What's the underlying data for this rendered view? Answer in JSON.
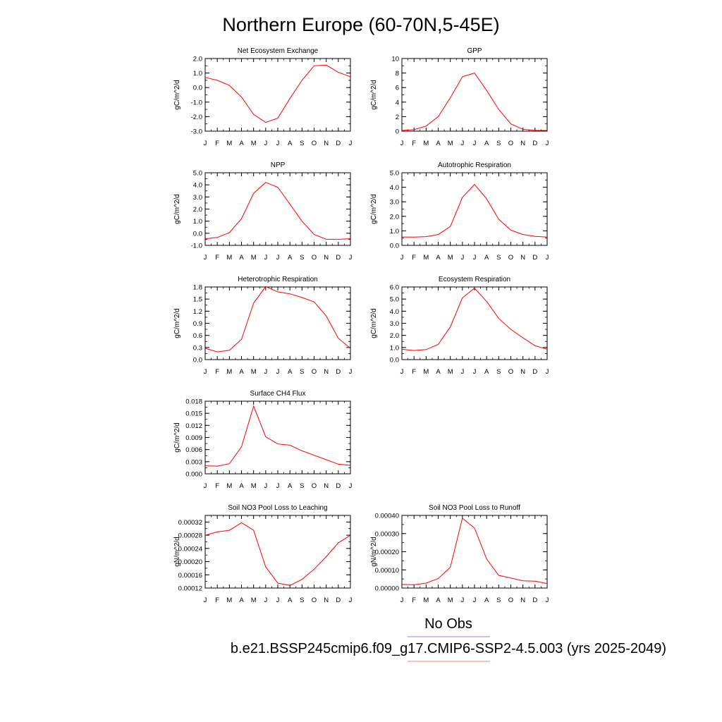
{
  "figure": {
    "title": "Northern Europe (60-70N,5-45E)",
    "legend": {
      "entries": [
        {
          "label": "No Obs",
          "color": "#8080ff"
        },
        {
          "label": "b.e21.BSSP245cmip6.f09_g17.CMIP6-SSP2-4.5.003 (yrs 2025-2049)",
          "color": "#ff8080"
        }
      ]
    }
  },
  "chart_data": [
    {
      "type": "line",
      "title": "Net Ecosystem Exchange",
      "ylabel": "gC/m^2/d",
      "categories": [
        "J",
        "F",
        "M",
        "A",
        "M",
        "J",
        "J",
        "A",
        "S",
        "O",
        "N",
        "D",
        "J"
      ],
      "ylim": [
        -3.0,
        2.0
      ],
      "yticks": [
        "-3.0",
        "-2.0",
        "-1.0",
        "0.0",
        "1.0",
        "2.0"
      ],
      "ytick_values": [
        -3,
        -2,
        -1,
        0,
        1,
        2
      ],
      "yminor": 0.5,
      "series": [
        {
          "color": "#ff0000",
          "values": [
            0.7,
            0.5,
            0.15,
            -0.65,
            -1.85,
            -2.4,
            -2.1,
            -0.75,
            0.5,
            1.5,
            1.55,
            1.05,
            0.75
          ]
        }
      ]
    },
    {
      "type": "line",
      "title": "GPP",
      "ylabel": "gC/m^2/d",
      "categories": [
        "J",
        "F",
        "M",
        "A",
        "M",
        "J",
        "J",
        "A",
        "S",
        "O",
        "N",
        "D",
        "J"
      ],
      "ylim": [
        0,
        10
      ],
      "yticks": [
        "0",
        "2",
        "4",
        "6",
        "8",
        "10"
      ],
      "ytick_values": [
        0,
        2,
        4,
        6,
        8,
        10
      ],
      "yminor": 1,
      "series": [
        {
          "color": "#ff0000",
          "values": [
            0.1,
            0.2,
            0.7,
            2.0,
            4.6,
            7.5,
            8.0,
            5.6,
            3.0,
            1.0,
            0.25,
            0.1,
            0.1
          ]
        }
      ]
    },
    {
      "type": "line",
      "title": "NPP",
      "ylabel": "gC/m^2/d",
      "categories": [
        "J",
        "F",
        "M",
        "A",
        "M",
        "J",
        "J",
        "A",
        "S",
        "O",
        "N",
        "D",
        "J"
      ],
      "ylim": [
        -1.0,
        5.0
      ],
      "yticks": [
        "-1.0",
        "0.0",
        "1.0",
        "2.0",
        "3.0",
        "4.0",
        "5.0"
      ],
      "ytick_values": [
        -1,
        0,
        1,
        2,
        3,
        4,
        5
      ],
      "yminor": 0.5,
      "series": [
        {
          "color": "#ff0000",
          "values": [
            -0.45,
            -0.35,
            0.05,
            1.2,
            3.3,
            4.2,
            3.8,
            2.4,
            1.0,
            -0.1,
            -0.5,
            -0.5,
            -0.45
          ]
        }
      ]
    },
    {
      "type": "line",
      "title": "Autotrophic Respiration",
      "ylabel": "gC/m^2/d",
      "categories": [
        "J",
        "F",
        "M",
        "A",
        "M",
        "J",
        "J",
        "A",
        "S",
        "O",
        "N",
        "D",
        "J"
      ],
      "ylim": [
        0.0,
        5.0
      ],
      "yticks": [
        "0.0",
        "1.0",
        "2.0",
        "3.0",
        "4.0",
        "5.0"
      ],
      "ytick_values": [
        0,
        1,
        2,
        3,
        4,
        5
      ],
      "yminor": 0.5,
      "series": [
        {
          "color": "#ff0000",
          "values": [
            0.58,
            0.57,
            0.6,
            0.75,
            1.3,
            3.3,
            4.2,
            3.2,
            1.8,
            1.05,
            0.75,
            0.62,
            0.57
          ]
        }
      ]
    },
    {
      "type": "line",
      "title": "Heterotrophic Respiration",
      "ylabel": "gC/m^2/d",
      "categories": [
        "J",
        "F",
        "M",
        "A",
        "M",
        "J",
        "J",
        "A",
        "S",
        "O",
        "N",
        "D",
        "J"
      ],
      "ylim": [
        0.0,
        1.8
      ],
      "yticks": [
        "0.0",
        "0.3",
        "0.6",
        "0.9",
        "1.2",
        "1.5",
        "1.8"
      ],
      "ytick_values": [
        0,
        0.3,
        0.6,
        0.9,
        1.2,
        1.5,
        1.8
      ],
      "yminor": 0.15,
      "series": [
        {
          "color": "#ff0000",
          "values": [
            0.28,
            0.19,
            0.23,
            0.5,
            1.4,
            1.81,
            1.68,
            1.63,
            1.54,
            1.43,
            1.08,
            0.53,
            0.28
          ]
        }
      ]
    },
    {
      "type": "line",
      "title": "Ecosystem Respiration",
      "ylabel": "gC/m^2/d",
      "categories": [
        "J",
        "F",
        "M",
        "A",
        "M",
        "J",
        "J",
        "A",
        "S",
        "O",
        "N",
        "D",
        "J"
      ],
      "ylim": [
        0.0,
        6.0
      ],
      "yticks": [
        "0.0",
        "1.0",
        "2.0",
        "3.0",
        "4.0",
        "5.0",
        "6.0"
      ],
      "ytick_values": [
        0,
        1,
        2,
        3,
        4,
        5,
        6
      ],
      "yminor": 0.5,
      "series": [
        {
          "color": "#ff0000",
          "values": [
            0.85,
            0.75,
            0.83,
            1.25,
            2.7,
            5.1,
            5.9,
            4.8,
            3.4,
            2.5,
            1.8,
            1.15,
            0.85
          ]
        }
      ]
    },
    {
      "type": "line",
      "title": "Surface CH4 Flux",
      "ylabel": "gC/m^2/d",
      "categories": [
        "J",
        "F",
        "M",
        "A",
        "M",
        "J",
        "J",
        "A",
        "S",
        "O",
        "N",
        "D",
        "J"
      ],
      "ylim": [
        0.0,
        0.018
      ],
      "yticks": [
        "0.000",
        "0.003",
        "0.006",
        "0.009",
        "0.012",
        "0.015",
        "0.018"
      ],
      "ytick_values": [
        0,
        0.003,
        0.006,
        0.009,
        0.012,
        0.015,
        0.018
      ],
      "yminor": 0.0015,
      "series": [
        {
          "color": "#ff0000",
          "values": [
            0.002,
            0.0019,
            0.0025,
            0.0067,
            0.0168,
            0.0092,
            0.0074,
            0.0071,
            0.0057,
            0.0046,
            0.0035,
            0.0024,
            0.0021
          ]
        }
      ]
    },
    {
      "type": "line",
      "title": "Soil NO3 Pool Loss to Leaching",
      "ylabel": "gN/m^2/d",
      "categories": [
        "J",
        "F",
        "M",
        "A",
        "M",
        "J",
        "J",
        "A",
        "S",
        "O",
        "N",
        "D",
        "J"
      ],
      "ylim": [
        0.00012,
        0.00034
      ],
      "yticks": [
        "0.00012",
        "0.00016",
        "0.00020",
        "0.00024",
        "0.00028",
        "0.00032"
      ],
      "ytick_values": [
        0.00012,
        0.00016,
        0.0002,
        0.00024,
        0.00028,
        0.00032
      ],
      "yminor": 2e-05,
      "series": [
        {
          "color": "#ff0000",
          "values": [
            0.00028,
            0.00029,
            0.000295,
            0.000318,
            0.000295,
            0.000184,
            0.000135,
            0.000128,
            0.000146,
            0.000177,
            0.000215,
            0.000257,
            0.00028
          ]
        }
      ]
    },
    {
      "type": "line",
      "title": "Soil NO3 Pool Loss to Runoff",
      "ylabel": "gN/m^2/d",
      "categories": [
        "J",
        "F",
        "M",
        "A",
        "M",
        "J",
        "J",
        "A",
        "S",
        "O",
        "N",
        "D",
        "J"
      ],
      "ylim": [
        0.0,
        0.0004
      ],
      "yticks": [
        "0.00000",
        "0.00010",
        "0.00020",
        "0.00030",
        "0.00040"
      ],
      "ytick_values": [
        0,
        0.0001,
        0.0002,
        0.0003,
        0.0004
      ],
      "yminor": 5e-05,
      "series": [
        {
          "color": "#ff0000",
          "values": [
            2e-05,
            1.8e-05,
            2.7e-05,
            5.2e-05,
            0.000115,
            0.000385,
            0.00033,
            0.00016,
            7e-05,
            5.5e-05,
            4e-05,
            3.8e-05,
            2.5e-05
          ]
        }
      ]
    }
  ]
}
